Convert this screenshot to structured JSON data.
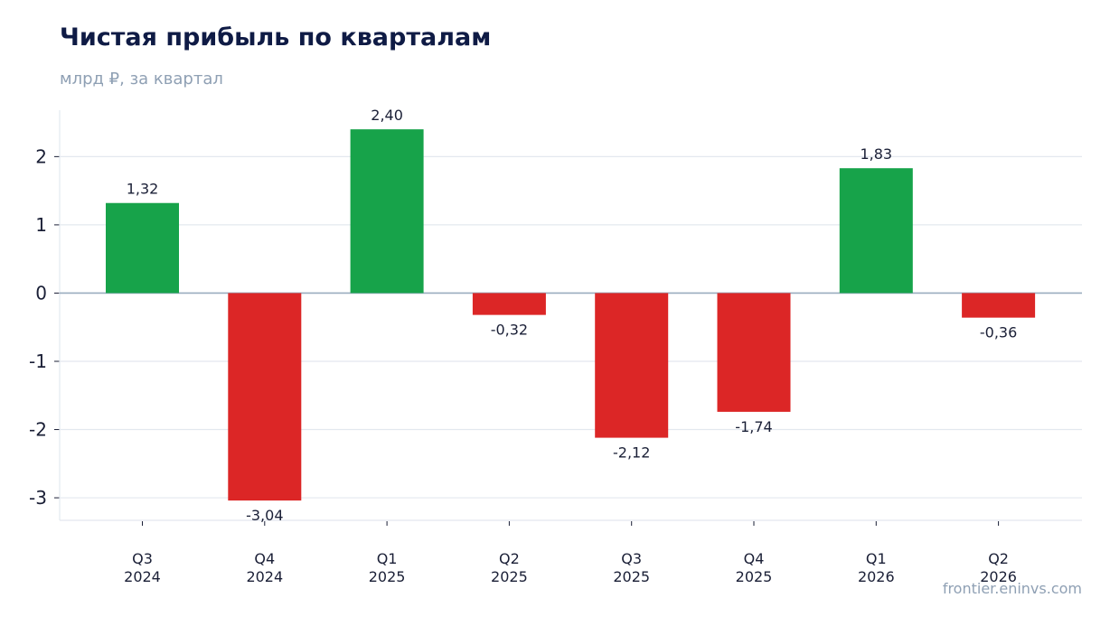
{
  "title": "Чистая прибыль по кварталам",
  "subtitle": "млрд ₽, за квартал",
  "source": "frontier.eninvs.com",
  "colors": {
    "positive": "#17a34a",
    "negative": "#dc2626",
    "grid": "#e3e8ef",
    "zero_line": "#9aacbf",
    "axis": "#e3e8ef"
  },
  "chart_data": {
    "type": "bar",
    "categories": [
      "Q3\n2024",
      "Q4\n2024",
      "Q1\n2025",
      "Q2\n2025",
      "Q3\n2025",
      "Q4\n2025",
      "Q1\n2026",
      "Q2\n2026"
    ],
    "values": [
      1.32,
      -3.04,
      2.4,
      -0.32,
      -2.12,
      -1.74,
      1.83,
      -0.36
    ],
    "data_labels": [
      "1,32",
      "-3,04",
      "2,40",
      "-0,32",
      "-2,12",
      "-1,74",
      "1,83",
      "-0,36"
    ],
    "yticks": [
      2,
      1,
      0,
      -1,
      -2,
      -3
    ],
    "ytick_labels": [
      "2",
      "1",
      "0",
      "-1",
      "-2",
      "-3"
    ],
    "ylim": [
      -3.33,
      2.68
    ],
    "grid": true,
    "legend": "none"
  }
}
